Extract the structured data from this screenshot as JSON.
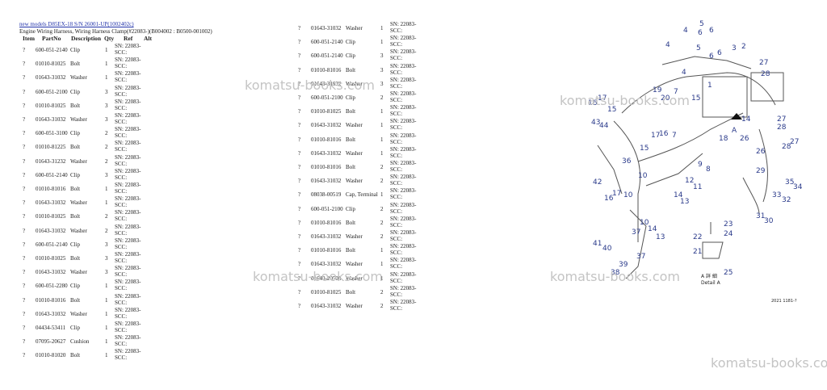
{
  "header": {
    "link": "new models D85EX-18 S/N 26001-UP(1002402c)",
    "subtitle": "Engine Wiring Harness, Wiring Harness Clamp(#22083-)(B004002 : B0500-001002)",
    "columns": [
      "Item",
      "PartNo",
      "Description",
      "Qty",
      "Ref",
      "Alt"
    ]
  },
  "table_left": {
    "rows": [
      [
        "?",
        "600-051-2140",
        "Clip",
        "1",
        "SN: 22083-SCC:"
      ],
      [
        "?",
        "01010-81025",
        "Bolt",
        "1",
        "SN: 22083-SCC:"
      ],
      [
        "?",
        "01643-31032",
        "Washer",
        "1",
        "SN: 22083-SCC:"
      ],
      [
        "?",
        "600-051-2100",
        "Clip",
        "3",
        "SN: 22083-SCC:"
      ],
      [
        "?",
        "01010-81025",
        "Bolt",
        "3",
        "SN: 22083-SCC:"
      ],
      [
        "?",
        "01643-31032",
        "Washer",
        "3",
        "SN: 22083-SCC:"
      ],
      [
        "?",
        "600-051-3100",
        "Clip",
        "2",
        "SN: 22083-SCC:"
      ],
      [
        "?",
        "01010-81225",
        "Bolt",
        "2",
        "SN: 22083-SCC:"
      ],
      [
        "?",
        "01643-31232",
        "Washer",
        "2",
        "SN: 22083-SCC:"
      ],
      [
        "?",
        "600-051-2140",
        "Clip",
        "3",
        "SN: 22083-SCC:"
      ],
      [
        "?",
        "01010-81016",
        "Bolt",
        "1",
        "SN: 22083-SCC:"
      ],
      [
        "?",
        "01643-31032",
        "Washer",
        "1",
        "SN: 22083-SCC:"
      ],
      [
        "?",
        "01010-81025",
        "Bolt",
        "2",
        "SN: 22083-SCC:"
      ],
      [
        "?",
        "01643-31032",
        "Washer",
        "2",
        "SN: 22083-SCC:"
      ],
      [
        "?",
        "600-051-2140",
        "Clip",
        "3",
        "SN: 22083-SCC:"
      ],
      [
        "?",
        "01010-81025",
        "Bolt",
        "3",
        "SN: 22083-SCC:"
      ],
      [
        "?",
        "01643-31032",
        "Washer",
        "3",
        "SN: 22083-SCC:"
      ],
      [
        "?",
        "600-051-2280",
        "Clip",
        "1",
        "SN: 22083-SCC:"
      ],
      [
        "?",
        "01010-81016",
        "Bolt",
        "1",
        "SN: 22083-SCC:"
      ],
      [
        "?",
        "01643-31032",
        "Washer",
        "1",
        "SN: 22083-SCC:"
      ],
      [
        "?",
        "04434-53411",
        "Clip",
        "1",
        "SN: 22083-SCC:"
      ],
      [
        "?",
        "07095-20627",
        "Cushion",
        "1",
        "SN: 22083-SCC:"
      ],
      [
        "?",
        "01010-81020",
        "Bolt",
        "1",
        "SN: 22083-SCC:"
      ]
    ]
  },
  "table_right": {
    "rows": [
      [
        "?",
        "01643-31032",
        "Washer",
        "1",
        "SN: 22083-SCC:"
      ],
      [
        "?",
        "600-051-2140",
        "Clip",
        "1",
        "SN: 22083-SCC:"
      ],
      [
        "?",
        "600-051-2140",
        "Clip",
        "3",
        "SN: 22083-SCC:"
      ],
      [
        "?",
        "01010-81016",
        "Bolt",
        "3",
        "SN: 22083-SCC:"
      ],
      [
        "?",
        "01643-31032",
        "Washer",
        "3",
        "SN: 22083-SCC:"
      ],
      [
        "?",
        "600-051-2100",
        "Clip",
        "2",
        "SN: 22083-SCC:"
      ],
      [
        "?",
        "01010-81025",
        "Bolt",
        "1",
        "SN: 22083-SCC:"
      ],
      [
        "?",
        "01643-31032",
        "Washer",
        "1",
        "SN: 22083-SCC:"
      ],
      [
        "?",
        "01010-81016",
        "Bolt",
        "1",
        "SN: 22083-SCC:"
      ],
      [
        "?",
        "01643-31032",
        "Washer",
        "1",
        "SN: 22083-SCC:"
      ],
      [
        "?",
        "01010-81016",
        "Bolt",
        "2",
        "SN: 22083-SCC:"
      ],
      [
        "?",
        "01643-31032",
        "Washer",
        "2",
        "SN: 22083-SCC:"
      ],
      [
        "?",
        "08038-00519",
        "Cap, Terminal",
        "1",
        "SN: 22083-SCC:"
      ],
      [
        "?",
        "600-051-2100",
        "Clip",
        "2",
        "SN: 22083-SCC:"
      ],
      [
        "?",
        "01010-81016",
        "Bolt",
        "2",
        "SN: 22083-SCC:"
      ],
      [
        "?",
        "01643-31032",
        "Washer",
        "2",
        "SN: 22083-SCC:"
      ],
      [
        "?",
        "01010-81016",
        "Bolt",
        "1",
        "SN: 22083-SCC:"
      ],
      [
        "?",
        "01643-31032",
        "Washer",
        "1",
        "SN: 22083-SCC:"
      ],
      [
        "?",
        "01640-20508",
        "Washer",
        "1",
        "SN: 22083-SCC:"
      ],
      [
        "?",
        "01010-81025",
        "Bolt",
        "2",
        "SN: 22083-SCC:"
      ],
      [
        "?",
        "01643-31032",
        "Washer",
        "2",
        "SN: 22083-SCC:"
      ]
    ]
  },
  "diagram": {
    "callouts": [
      "5",
      "6",
      "4",
      "6",
      "4",
      "5",
      "3",
      "2",
      "6",
      "6",
      "27",
      "28",
      "4",
      "19",
      "20",
      "7",
      "15",
      "1",
      "17",
      "16",
      "15",
      "43",
      "44",
      "27",
      "28",
      "14",
      "18",
      "26",
      "17",
      "16",
      "7",
      "15",
      "28",
      "27",
      "26",
      "36",
      "9",
      "8",
      "29",
      "35",
      "34",
      "10",
      "12",
      "11",
      "42",
      "17",
      "16",
      "10",
      "14",
      "13",
      "33",
      "32",
      "31",
      "30",
      "23",
      "24",
      "10",
      "37",
      "14",
      "13",
      "22",
      "41",
      "40",
      "37",
      "21",
      "39",
      "38",
      "25",
      "A"
    ],
    "detail_title": "A 詳 細",
    "detail_label": "Detail A",
    "code": "2021 1181-?"
  },
  "watermarks": [
    "komatsu-books.com",
    "komatsu-books.com",
    "komatsu-books.com",
    "komatsu-books.com",
    "komatsu-books.co"
  ]
}
